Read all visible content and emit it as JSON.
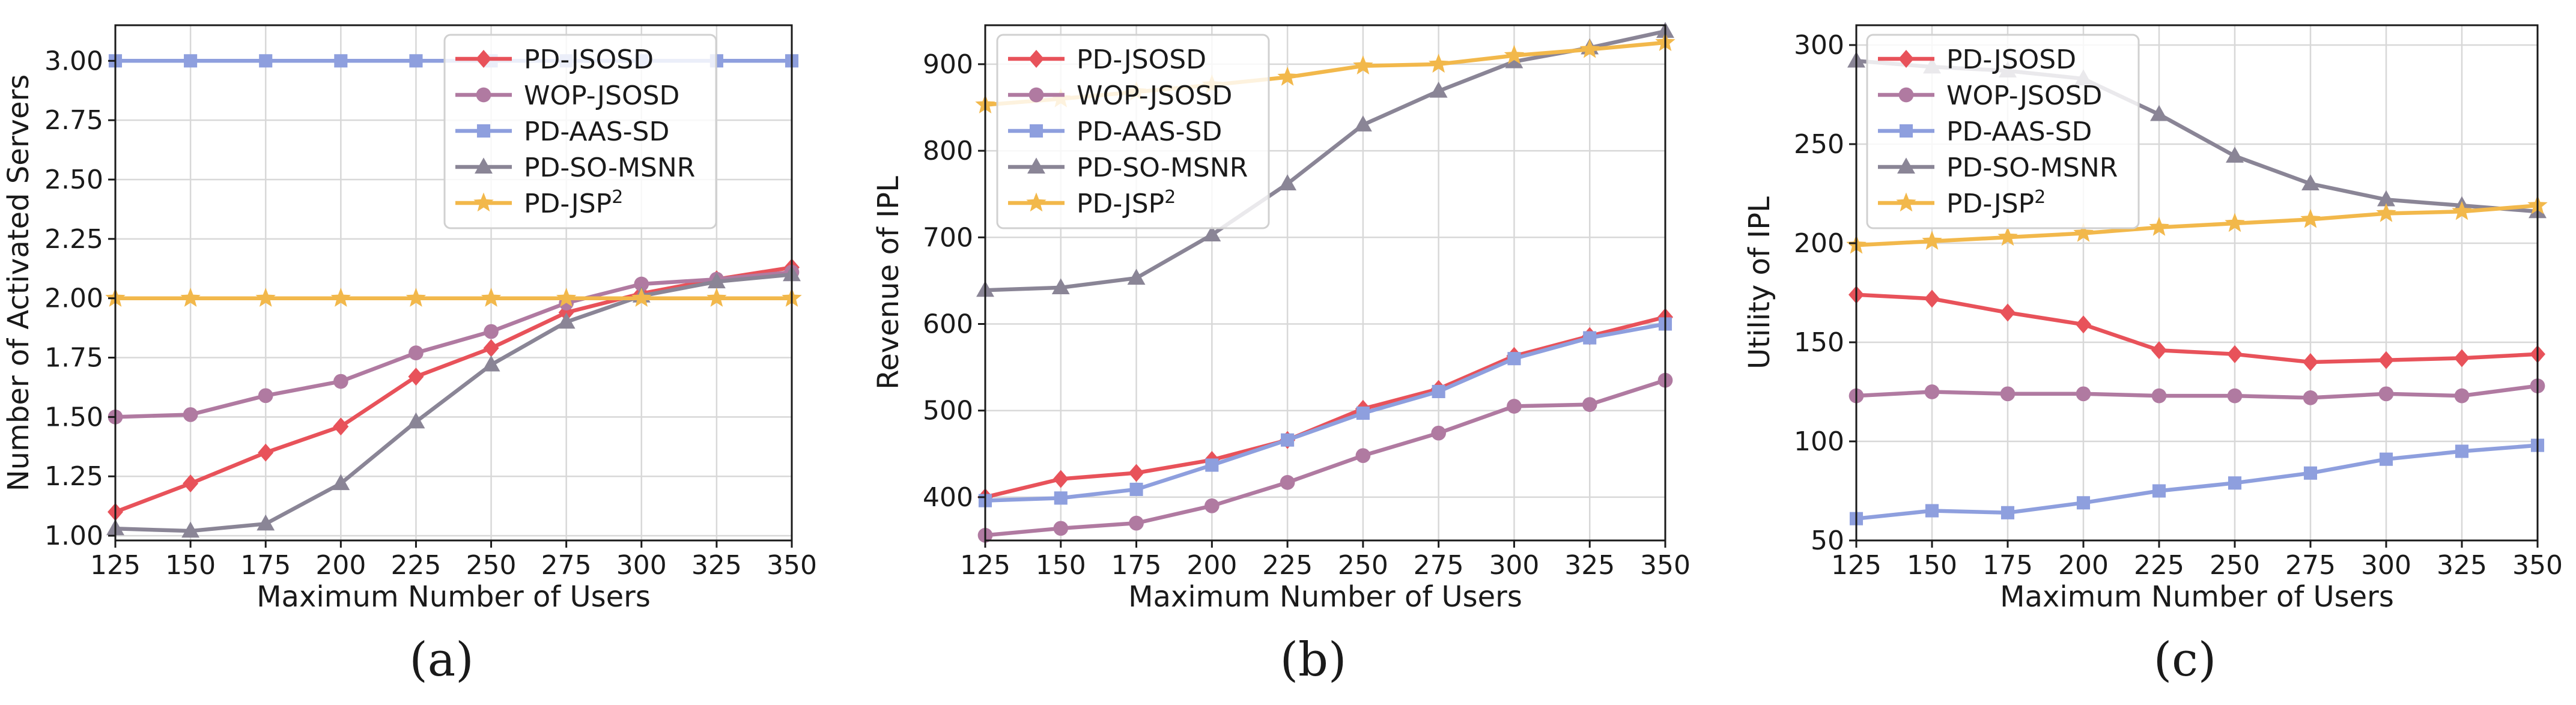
{
  "colors": {
    "PD-JSOSD": "#e8525a",
    "WOP-JSOSD": "#b07aa1",
    "PD-AAS-SD": "#8e9fde",
    "PD-SO-MSNR": "#8a8596",
    "PD-JSP2": "#f2b84b",
    "grid": "#d8d8d8"
  },
  "legend_labels": {
    "PD-JSOSD": "PD-JSOSD",
    "WOP-JSOSD": "WOP-JSOSD",
    "PD-AAS-SD": "PD-AAS-SD",
    "PD-SO-MSNR": "PD-SO-MSNR",
    "PD-JSP2_base": "PD-JSP",
    "PD-JSP2_sup": "2"
  },
  "chart_data": [
    {
      "type": "line",
      "caption": "(a)",
      "xlabel": "Maximum Number of Users",
      "ylabel": "Number of Activated Servers",
      "x": [
        125,
        150,
        175,
        200,
        225,
        250,
        275,
        300,
        325,
        350
      ],
      "xlim": [
        125,
        350
      ],
      "ylim": [
        0.98,
        3.15
      ],
      "yticks": [
        1.0,
        1.25,
        1.5,
        1.75,
        2.0,
        2.25,
        2.5,
        2.75,
        3.0
      ],
      "ytick_labels": [
        "1.00",
        "1.25",
        "1.50",
        "1.75",
        "2.00",
        "2.25",
        "2.50",
        "2.75",
        "3.00"
      ],
      "grid": true,
      "legend": "top-right",
      "series": [
        {
          "name": "PD-JSOSD",
          "marker": "diamond",
          "values": [
            1.1,
            1.22,
            1.35,
            1.46,
            1.67,
            1.79,
            1.94,
            2.02,
            2.08,
            2.13
          ]
        },
        {
          "name": "WOP-JSOSD",
          "marker": "circle",
          "values": [
            1.5,
            1.51,
            1.59,
            1.65,
            1.77,
            1.86,
            1.98,
            2.06,
            2.08,
            2.11
          ]
        },
        {
          "name": "PD-AAS-SD",
          "marker": "square",
          "values": [
            3.0,
            3.0,
            3.0,
            3.0,
            3.0,
            3.0,
            3.0,
            3.0,
            3.0,
            3.0
          ]
        },
        {
          "name": "PD-SO-MSNR",
          "marker": "triangle",
          "values": [
            1.03,
            1.02,
            1.05,
            1.22,
            1.48,
            1.72,
            1.9,
            2.01,
            2.07,
            2.1
          ]
        },
        {
          "name": "PD-JSP2",
          "marker": "star",
          "values": [
            2.0,
            2.0,
            2.0,
            2.0,
            2.0,
            2.0,
            2.0,
            2.0,
            2.0,
            2.0
          ]
        }
      ]
    },
    {
      "type": "line",
      "caption": "(b)",
      "xlabel": "Maximum Number of Users",
      "ylabel": "Revenue of IPL",
      "x": [
        125,
        150,
        175,
        200,
        225,
        250,
        275,
        300,
        325,
        350
      ],
      "xlim": [
        125,
        350
      ],
      "ylim": [
        350,
        945
      ],
      "yticks": [
        400,
        500,
        600,
        700,
        800,
        900
      ],
      "ytick_labels": [
        "400",
        "500",
        "600",
        "700",
        "800",
        "900"
      ],
      "grid": true,
      "legend": "top-left",
      "series": [
        {
          "name": "PD-JSOSD",
          "marker": "diamond",
          "values": [
            400,
            421,
            428,
            443,
            466,
            502,
            525,
            563,
            586,
            608
          ]
        },
        {
          "name": "WOP-JSOSD",
          "marker": "circle",
          "values": [
            356,
            364,
            370,
            390,
            417,
            448,
            474,
            505,
            507,
            535
          ]
        },
        {
          "name": "PD-AAS-SD",
          "marker": "square",
          "values": [
            396,
            399,
            409,
            437,
            466,
            497,
            522,
            560,
            584,
            600
          ]
        },
        {
          "name": "PD-SO-MSNR",
          "marker": "triangle",
          "values": [
            639,
            642,
            653,
            703,
            762,
            830,
            869,
            903,
            919,
            938
          ]
        },
        {
          "name": "PD-JSP2",
          "marker": "star",
          "values": [
            853,
            860,
            868,
            876,
            885,
            898,
            900,
            910,
            917,
            925
          ]
        }
      ]
    },
    {
      "type": "line",
      "caption": "(c)",
      "xlabel": "Maximum Number of Users",
      "ylabel": "Utility of IPL",
      "x": [
        125,
        150,
        175,
        200,
        225,
        250,
        275,
        300,
        325,
        350
      ],
      "xlim": [
        125,
        350
      ],
      "ylim": [
        50,
        310
      ],
      "yticks": [
        50,
        100,
        150,
        200,
        250,
        300
      ],
      "ytick_labels": [
        "50",
        "100",
        "150",
        "200",
        "250",
        "300"
      ],
      "grid": true,
      "legend": "top-left",
      "series": [
        {
          "name": "PD-JSOSD",
          "marker": "diamond",
          "values": [
            174,
            172,
            165,
            159,
            146,
            144,
            140,
            141,
            142,
            144
          ]
        },
        {
          "name": "WOP-JSOSD",
          "marker": "circle",
          "values": [
            123,
            125,
            124,
            124,
            123,
            123,
            122,
            124,
            123,
            128
          ]
        },
        {
          "name": "PD-AAS-SD",
          "marker": "square",
          "values": [
            61,
            65,
            64,
            69,
            75,
            79,
            84,
            91,
            95,
            98
          ]
        },
        {
          "name": "PD-SO-MSNR",
          "marker": "triangle",
          "values": [
            292,
            289,
            287,
            283,
            265,
            244,
            230,
            222,
            219,
            216
          ]
        },
        {
          "name": "PD-JSP2",
          "marker": "star",
          "values": [
            199,
            201,
            203,
            205,
            208,
            210,
            212,
            215,
            216,
            219
          ]
        }
      ]
    }
  ]
}
